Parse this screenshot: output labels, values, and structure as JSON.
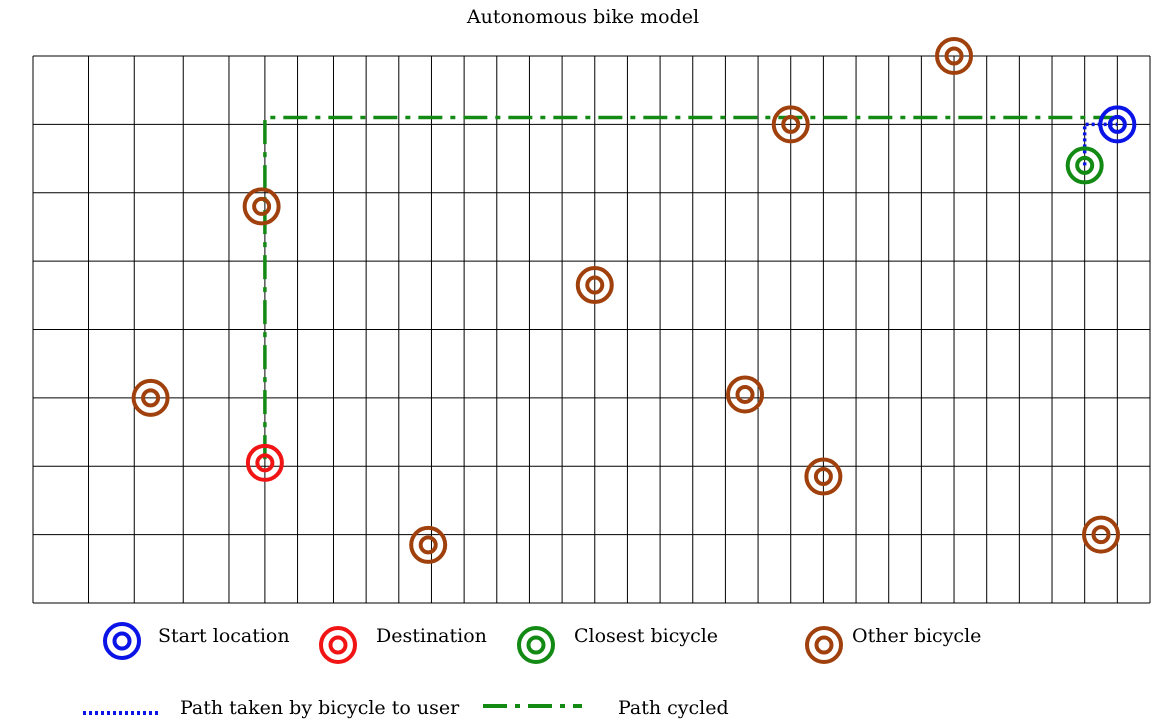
{
  "title": "Autonomous bike model",
  "colors": {
    "start": "#0a14e6",
    "destination": "#f01414",
    "closest": "#128a14",
    "other": "#a0400c",
    "grid": "#000000",
    "path_to_user": "#0a14e6",
    "path_cycled": "#128a14"
  },
  "grid": {
    "columns": [
      0,
      1.7,
      3.1,
      4.6,
      6.0,
      7.1,
      8.1,
      9.2,
      10.2,
      11.2,
      12.2,
      13.2,
      14.2,
      15.2,
      16.2,
      17.2,
      18.2,
      19.2,
      20.2,
      21.2,
      22.2,
      23.2,
      24.2,
      25.2,
      26.2,
      27.2,
      28.2,
      29.2,
      30.2,
      31.2,
      32.2,
      33.2,
      34.2
    ],
    "rows": [
      0,
      2,
      4,
      6,
      8,
      10,
      12,
      14,
      16
    ],
    "extent": {
      "width": 34.2,
      "height": 16
    }
  },
  "markers": [
    {
      "type": "start",
      "x": 33.2,
      "y": 14.0
    },
    {
      "type": "destination",
      "x": 7.1,
      "y": 4.1
    },
    {
      "type": "closest",
      "x": 32.2,
      "y": 12.8
    },
    {
      "type": "other",
      "x": 28.2,
      "y": 16.0
    },
    {
      "type": "other",
      "x": 23.2,
      "y": 14.0
    },
    {
      "type": "other",
      "x": 7.0,
      "y": 11.6
    },
    {
      "type": "other",
      "x": 17.2,
      "y": 9.3
    },
    {
      "type": "other",
      "x": 3.6,
      "y": 6.0
    },
    {
      "type": "other",
      "x": 21.8,
      "y": 6.1
    },
    {
      "type": "other",
      "x": 24.2,
      "y": 3.7
    },
    {
      "type": "other",
      "x": 12.1,
      "y": 1.7
    },
    {
      "type": "other",
      "x": 32.7,
      "y": 2.0
    }
  ],
  "paths": {
    "to_user": [
      [
        32.2,
        12.8
      ],
      [
        32.2,
        14.0
      ],
      [
        33.2,
        14.0
      ]
    ],
    "cycled": [
      [
        33.2,
        14.2
      ],
      [
        7.3,
        14.2
      ],
      [
        7.1,
        14.2
      ],
      [
        7.1,
        4.1
      ]
    ]
  },
  "legend": {
    "start": "Start location",
    "destination": "Destination",
    "closest": "Closest bicycle",
    "other": "Other bicycle",
    "path_to_user": "Path taken by bicycle to user",
    "path_cycled": "Path cycled"
  }
}
